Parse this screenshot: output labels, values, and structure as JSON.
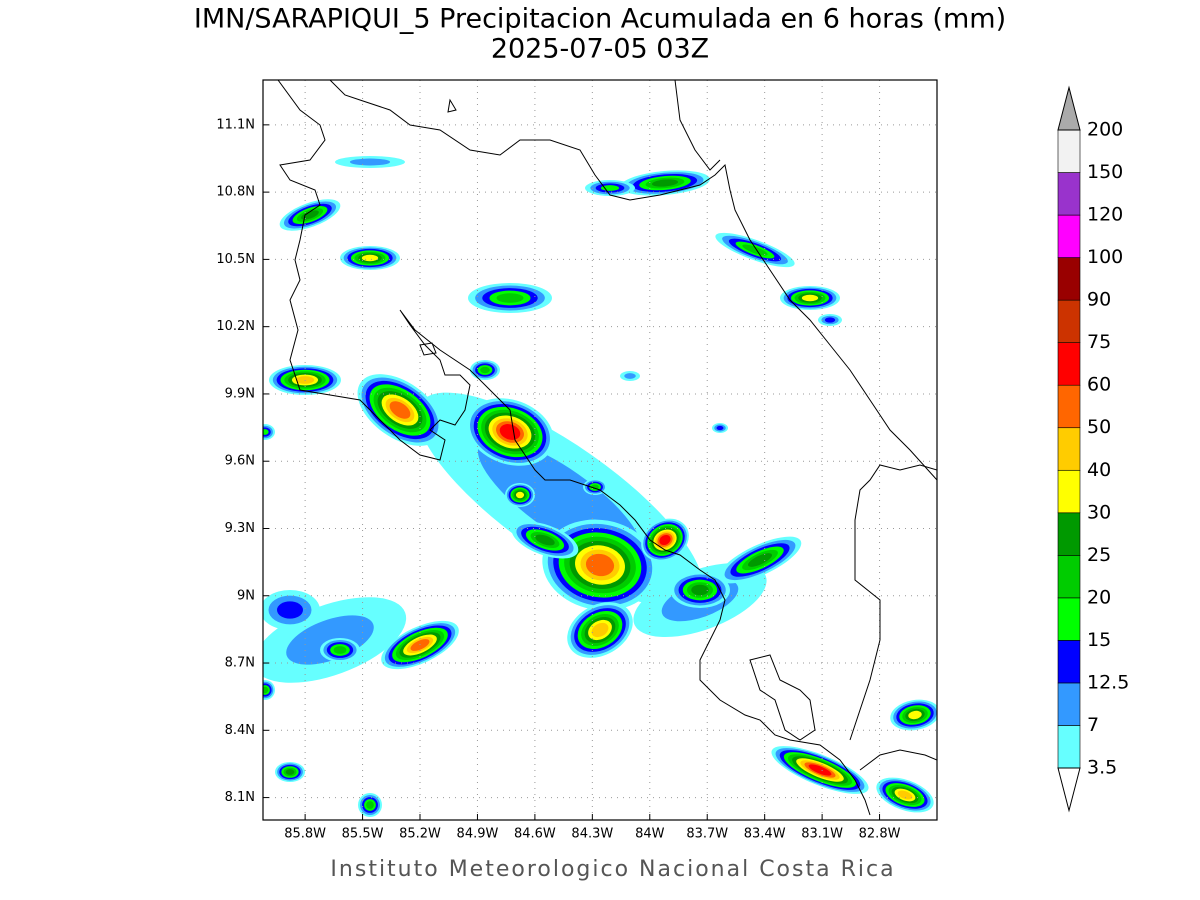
{
  "title": "IMN/SARAPIQUI_5 Precipitacion Acumulada en 6 horas (mm)",
  "subtitle": "2025-07-05 03Z",
  "map": {
    "lonlim": [
      -86.02,
      -82.5
    ],
    "latlim": [
      8.0,
      11.3
    ],
    "lon_ticks": [
      {
        "value": -85.8,
        "label": "85.8W"
      },
      {
        "value": -85.5,
        "label": "85.5W"
      },
      {
        "value": -85.2,
        "label": "85.2W"
      },
      {
        "value": -84.9,
        "label": "84.9W"
      },
      {
        "value": -84.6,
        "label": "84.6W"
      },
      {
        "value": -84.3,
        "label": "84.3W"
      },
      {
        "value": -84.0,
        "label": "84W"
      },
      {
        "value": -83.7,
        "label": "83.7W"
      },
      {
        "value": -83.4,
        "label": "83.4W"
      },
      {
        "value": -83.1,
        "label": "83.1W"
      },
      {
        "value": -82.8,
        "label": "82.8W"
      }
    ],
    "lat_ticks": [
      {
        "value": 11.1,
        "label": "11.1N"
      },
      {
        "value": 10.8,
        "label": "10.8N"
      },
      {
        "value": 10.5,
        "label": "10.5N"
      },
      {
        "value": 10.2,
        "label": "10.2N"
      },
      {
        "value": 9.9,
        "label": "9.9N"
      },
      {
        "value": 9.6,
        "label": "9.6N"
      },
      {
        "value": 9.3,
        "label": "9.3N"
      },
      {
        "value": 9.0,
        "label": "9N"
      },
      {
        "value": 8.7,
        "label": "8.7N"
      },
      {
        "value": 8.4,
        "label": "8.4N"
      },
      {
        "value": 8.1,
        "label": "8.1N"
      }
    ],
    "grid": true
  },
  "colorbar": {
    "levels": [
      3.5,
      7,
      12.5,
      15,
      20,
      25,
      30,
      40,
      50,
      60,
      75,
      90,
      100,
      120,
      150,
      200
    ],
    "colors": [
      "#66ffff",
      "#3399ff",
      "#0000ff",
      "#00ff00",
      "#00cc00",
      "#009900",
      "#ffff00",
      "#ffcc00",
      "#ff6600",
      "#ff0000",
      "#cc3300",
      "#990000",
      "#ff00ff",
      "#9933cc",
      "#f2f2f2"
    ],
    "under_color": "#ffffff",
    "over_color": "#aaaaaa"
  },
  "footer": "Instituto Meteorologico Nacional Costa Rica"
}
